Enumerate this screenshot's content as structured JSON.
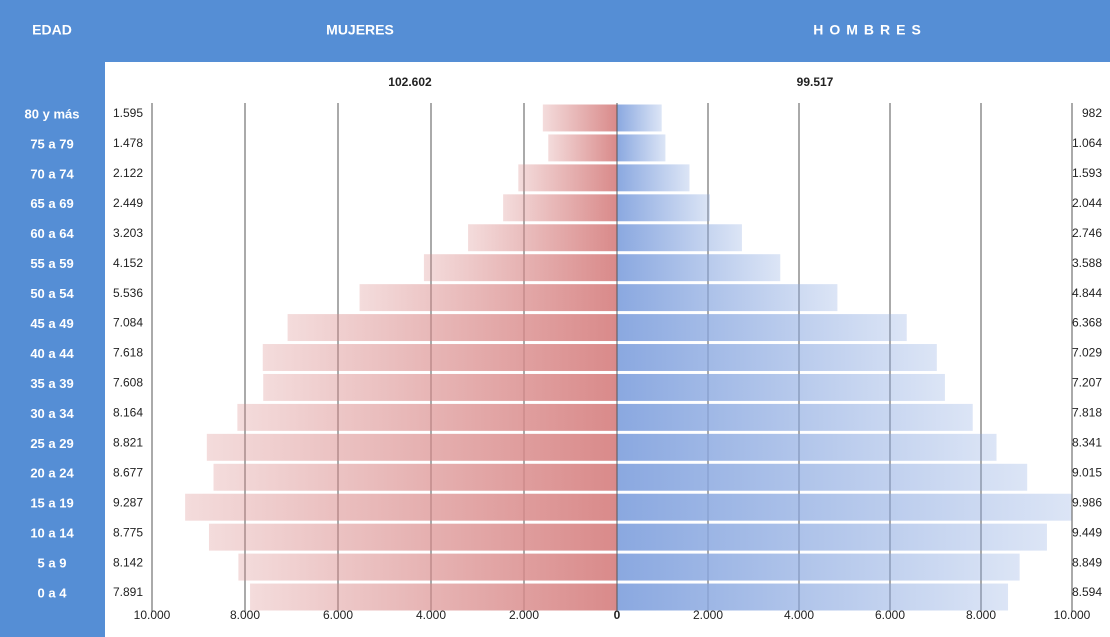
{
  "chart_data": {
    "type": "pyramid",
    "category_label": "EDAD",
    "categories": [
      "80 y más",
      "75 a 79",
      "70 a 74",
      "65 a 69",
      "60 a 64",
      "55 a 59",
      "50 a 54",
      "45 a 49",
      "40 a 44",
      "35 a 39",
      "30 a 34",
      "25 a 29",
      "20 a 24",
      "15 a 19",
      "10 a 14",
      "5 a 9",
      "0 a 4"
    ],
    "series": [
      {
        "name": "MUJERES",
        "color": "#d98a8a",
        "side": "left",
        "total": 102602,
        "total_label": "102.602",
        "values": [
          1595,
          1478,
          2122,
          2449,
          3203,
          4152,
          5536,
          7084,
          7618,
          7608,
          8164,
          8821,
          8677,
          9287,
          8775,
          8142,
          7891
        ],
        "value_labels": [
          "1.595",
          "1.478",
          "2.122",
          "2.449",
          "3.203",
          "4.152",
          "5.536",
          "7.084",
          "7.618",
          "7.608",
          "8.164",
          "8.821",
          "8.677",
          "9.287",
          "8.775",
          "8.142",
          "7.891"
        ]
      },
      {
        "name": "HOMBRES",
        "color": "#8aa8e0",
        "side": "right",
        "total": 99517,
        "total_label": "99.517",
        "values": [
          982,
          1064,
          1593,
          2044,
          2746,
          3588,
          4844,
          6368,
          7029,
          7207,
          7818,
          8341,
          9015,
          9986,
          9449,
          8849,
          8594
        ],
        "value_labels": [
          "982",
          "1.064",
          "1.593",
          "2.044",
          "2.746",
          "3.588",
          "4.844",
          "6.368",
          "7.029",
          "7.207",
          "7.818",
          "8.341",
          "9.015",
          "9.986",
          "9.449",
          "8.849",
          "8.594"
        ]
      }
    ],
    "xlim": [
      -10000,
      10000
    ],
    "xticks": [
      {
        "value": -10000,
        "label": "10.000"
      },
      {
        "value": -8000,
        "label": "8.000"
      },
      {
        "value": -6000,
        "label": "6.000"
      },
      {
        "value": -4000,
        "label": "4.000"
      },
      {
        "value": -2000,
        "label": "2.000"
      },
      0,
      {
        "value": 2000,
        "label": "2.000"
      },
      {
        "value": 4000,
        "label": "4.000"
      },
      {
        "value": 6000,
        "label": "6.000"
      },
      {
        "value": 8000,
        "label": "8.000"
      },
      {
        "value": 10000,
        "label": "10.000"
      }
    ],
    "grid": true
  }
}
